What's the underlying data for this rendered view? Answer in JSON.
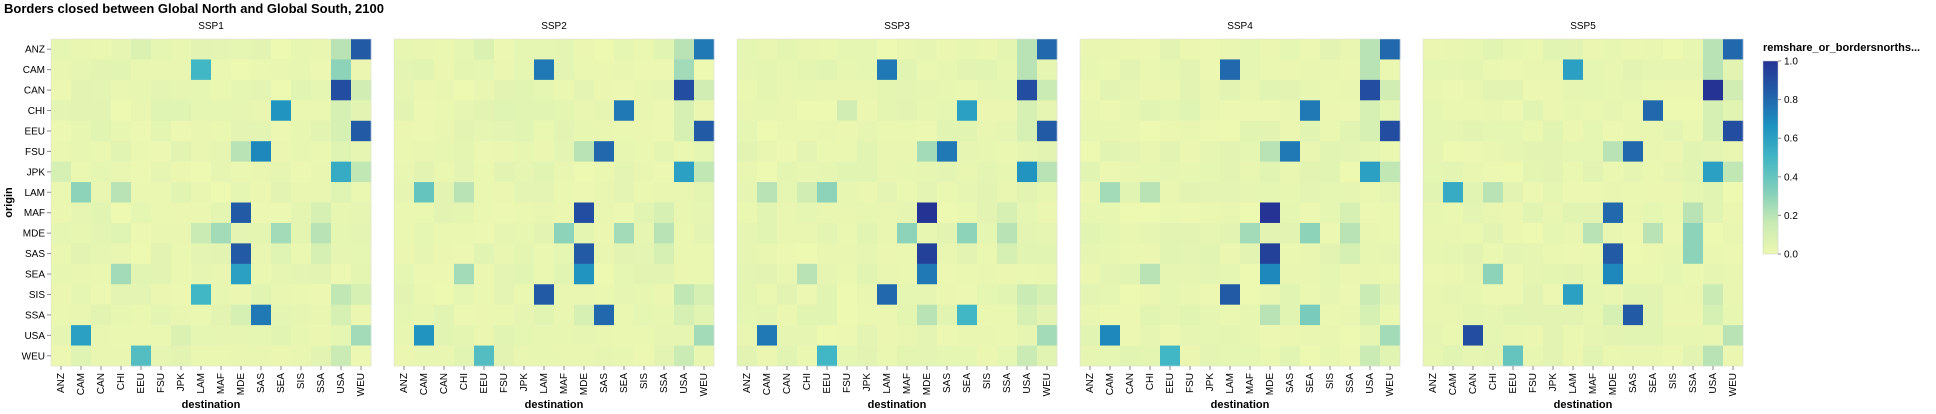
{
  "chart_data": {
    "type": "heatmap",
    "title": "Borders closed between Global North and Global South, 2100",
    "xlabel": "destination",
    "ylabel": "origin",
    "color_scale": {
      "field_label": "remshare_or_bordersnorths...",
      "domain": [
        0.0,
        1.0
      ],
      "ticks": [
        "1.0",
        "0.8",
        "0.6",
        "0.4",
        "0.2",
        "0.0"
      ],
      "scheme": "yellowgreenblue",
      "stops": [
        "#edf8b1",
        "#c7e9b4",
        "#7fcdbb",
        "#41b6c4",
        "#1d91c0",
        "#225ea8",
        "#253494"
      ]
    },
    "regions": [
      "ANZ",
      "CAM",
      "CAN",
      "CHI",
      "EEU",
      "FSU",
      "JPK",
      "LAM",
      "MAF",
      "MDE",
      "SAS",
      "SEA",
      "SIS",
      "SSA",
      "USA",
      "WEU"
    ],
    "facets": [
      {
        "name": "SSP1",
        "cells": [
          [
            "ANZ",
            "WEU",
            0.85
          ],
          [
            "ANZ",
            "USA",
            0.2
          ],
          [
            "ANZ",
            "EEU",
            0.08
          ],
          [
            "CAM",
            "LAM",
            0.5
          ],
          [
            "CAM",
            "USA",
            0.3
          ],
          [
            "CAM",
            "CHI",
            0.05
          ],
          [
            "CAN",
            "USA",
            0.9
          ],
          [
            "CAN",
            "WEU",
            0.12
          ],
          [
            "CHI",
            "SEA",
            0.65
          ],
          [
            "CHI",
            "USA",
            0.1
          ],
          [
            "CHI",
            "FSU",
            0.06
          ],
          [
            "CHI",
            "JPK",
            0.06
          ],
          [
            "EEU",
            "WEU",
            0.85
          ],
          [
            "EEU",
            "USA",
            0.1
          ],
          [
            "FSU",
            "SAS",
            0.7
          ],
          [
            "FSU",
            "MDE",
            0.2
          ],
          [
            "FSU",
            "USA",
            0.06
          ],
          [
            "JPK",
            "USA",
            0.55
          ],
          [
            "JPK",
            "WEU",
            0.18
          ],
          [
            "JPK",
            "ANZ",
            0.1
          ],
          [
            "LAM",
            "CAM",
            0.3
          ],
          [
            "LAM",
            "CHI",
            0.2
          ],
          [
            "LAM",
            "USA",
            0.06
          ],
          [
            "MAF",
            "MDE",
            0.85
          ],
          [
            "MAF",
            "SSA",
            0.1
          ],
          [
            "MDE",
            "LAM",
            0.15
          ],
          [
            "MDE",
            "MAF",
            0.25
          ],
          [
            "MDE",
            "SEA",
            0.25
          ],
          [
            "MDE",
            "SSA",
            0.2
          ],
          [
            "MDE",
            "CHI",
            0.06
          ],
          [
            "SAS",
            "MDE",
            0.85
          ],
          [
            "SAS",
            "SSA",
            0.1
          ],
          [
            "SAS",
            "SEA",
            0.06
          ],
          [
            "SEA",
            "MDE",
            0.6
          ],
          [
            "SEA",
            "CHI",
            0.25
          ],
          [
            "SIS",
            "LAM",
            0.5
          ],
          [
            "SIS",
            "USA",
            0.18
          ],
          [
            "SIS",
            "WEU",
            0.1
          ],
          [
            "SSA",
            "SAS",
            0.75
          ],
          [
            "SSA",
            "MDE",
            0.1
          ],
          [
            "SSA",
            "USA",
            0.1
          ],
          [
            "USA",
            "CAM",
            0.6
          ],
          [
            "USA",
            "WEU",
            0.25
          ],
          [
            "USA",
            "JPK",
            0.08
          ],
          [
            "WEU",
            "EEU",
            0.45
          ],
          [
            "WEU",
            "USA",
            0.15
          ],
          [
            "WEU",
            "CAM",
            0.06
          ]
        ]
      },
      {
        "name": "SSP2",
        "cells": [
          [
            "ANZ",
            "WEU",
            0.75
          ],
          [
            "ANZ",
            "USA",
            0.2
          ],
          [
            "ANZ",
            "EEU",
            0.08
          ],
          [
            "CAM",
            "LAM",
            0.75
          ],
          [
            "CAM",
            "USA",
            0.25
          ],
          [
            "CAN",
            "USA",
            0.9
          ],
          [
            "CAN",
            "WEU",
            0.12
          ],
          [
            "CHI",
            "SEA",
            0.75
          ],
          [
            "CHI",
            "USA",
            0.1
          ],
          [
            "CHI",
            "FSU",
            0.06
          ],
          [
            "EEU",
            "WEU",
            0.85
          ],
          [
            "EEU",
            "USA",
            0.1
          ],
          [
            "FSU",
            "SAS",
            0.8
          ],
          [
            "FSU",
            "MDE",
            0.2
          ],
          [
            "JPK",
            "USA",
            0.6
          ],
          [
            "JPK",
            "WEU",
            0.18
          ],
          [
            "LAM",
            "CAM",
            0.4
          ],
          [
            "LAM",
            "CHI",
            0.2
          ],
          [
            "MAF",
            "MDE",
            0.9
          ],
          [
            "MAF",
            "SSA",
            0.1
          ],
          [
            "MDE",
            "MAF",
            0.3
          ],
          [
            "MDE",
            "SEA",
            0.25
          ],
          [
            "MDE",
            "SSA",
            0.2
          ],
          [
            "SAS",
            "MDE",
            0.85
          ],
          [
            "SAS",
            "SSA",
            0.1
          ],
          [
            "SEA",
            "MDE",
            0.65
          ],
          [
            "SEA",
            "CHI",
            0.25
          ],
          [
            "SIS",
            "LAM",
            0.85
          ],
          [
            "SIS",
            "USA",
            0.18
          ],
          [
            "SIS",
            "WEU",
            0.1
          ],
          [
            "SSA",
            "SAS",
            0.8
          ],
          [
            "SSA",
            "MDE",
            0.1
          ],
          [
            "SSA",
            "USA",
            0.1
          ],
          [
            "USA",
            "CAM",
            0.65
          ],
          [
            "USA",
            "WEU",
            0.25
          ],
          [
            "WEU",
            "EEU",
            0.45
          ],
          [
            "WEU",
            "USA",
            0.15
          ]
        ]
      },
      {
        "name": "SSP3",
        "cells": [
          [
            "ANZ",
            "WEU",
            0.8
          ],
          [
            "ANZ",
            "USA",
            0.2
          ],
          [
            "CAM",
            "LAM",
            0.75
          ],
          [
            "CAM",
            "USA",
            0.2
          ],
          [
            "CAN",
            "USA",
            0.9
          ],
          [
            "CAN",
            "WEU",
            0.15
          ],
          [
            "CHI",
            "SEA",
            0.6
          ],
          [
            "CHI",
            "FSU",
            0.12
          ],
          [
            "CHI",
            "USA",
            0.1
          ],
          [
            "EEU",
            "WEU",
            0.85
          ],
          [
            "EEU",
            "USA",
            0.1
          ],
          [
            "FSU",
            "SAS",
            0.75
          ],
          [
            "FSU",
            "MDE",
            0.25
          ],
          [
            "JPK",
            "USA",
            0.65
          ],
          [
            "JPK",
            "WEU",
            0.2
          ],
          [
            "LAM",
            "EEU",
            0.3
          ],
          [
            "LAM",
            "CAM",
            0.2
          ],
          [
            "LAM",
            "CHI",
            0.12
          ],
          [
            "MAF",
            "MDE",
            1.0
          ],
          [
            "MAF",
            "SSA",
            0.1
          ],
          [
            "MDE",
            "MAF",
            0.3
          ],
          [
            "MDE",
            "SEA",
            0.3
          ],
          [
            "MDE",
            "SSA",
            0.2
          ],
          [
            "SAS",
            "MDE",
            0.95
          ],
          [
            "SAS",
            "SSA",
            0.1
          ],
          [
            "SEA",
            "MDE",
            0.75
          ],
          [
            "SEA",
            "CHI",
            0.2
          ],
          [
            "SIS",
            "LAM",
            0.8
          ],
          [
            "SIS",
            "USA",
            0.15
          ],
          [
            "SIS",
            "WEU",
            0.1
          ],
          [
            "SSA",
            "SEA",
            0.5
          ],
          [
            "SSA",
            "MDE",
            0.2
          ],
          [
            "SSA",
            "USA",
            0.1
          ],
          [
            "USA",
            "CAM",
            0.75
          ],
          [
            "USA",
            "WEU",
            0.25
          ],
          [
            "WEU",
            "EEU",
            0.5
          ],
          [
            "WEU",
            "USA",
            0.15
          ]
        ]
      },
      {
        "name": "SSP4",
        "cells": [
          [
            "ANZ",
            "WEU",
            0.8
          ],
          [
            "ANZ",
            "USA",
            0.2
          ],
          [
            "CAM",
            "LAM",
            0.8
          ],
          [
            "CAM",
            "USA",
            0.2
          ],
          [
            "CAN",
            "USA",
            0.9
          ],
          [
            "CAN",
            "WEU",
            0.12
          ],
          [
            "CHI",
            "SEA",
            0.75
          ],
          [
            "CHI",
            "USA",
            0.1
          ],
          [
            "CHI",
            "FSU",
            0.06
          ],
          [
            "EEU",
            "WEU",
            0.9
          ],
          [
            "EEU",
            "USA",
            0.1
          ],
          [
            "FSU",
            "SAS",
            0.75
          ],
          [
            "FSU",
            "MDE",
            0.2
          ],
          [
            "JPK",
            "USA",
            0.6
          ],
          [
            "JPK",
            "WEU",
            0.18
          ],
          [
            "LAM",
            "CAM",
            0.25
          ],
          [
            "LAM",
            "CHI",
            0.2
          ],
          [
            "MAF",
            "MDE",
            1.0
          ],
          [
            "MAF",
            "SSA",
            0.1
          ],
          [
            "MDE",
            "MAF",
            0.25
          ],
          [
            "MDE",
            "SEA",
            0.3
          ],
          [
            "MDE",
            "SSA",
            0.2
          ],
          [
            "SAS",
            "MDE",
            0.95
          ],
          [
            "SAS",
            "SSA",
            0.1
          ],
          [
            "SEA",
            "MDE",
            0.7
          ],
          [
            "SEA",
            "CHI",
            0.2
          ],
          [
            "SIS",
            "LAM",
            0.85
          ],
          [
            "SIS",
            "USA",
            0.15
          ],
          [
            "SSA",
            "SEA",
            0.35
          ],
          [
            "SSA",
            "MDE",
            0.2
          ],
          [
            "SSA",
            "USA",
            0.1
          ],
          [
            "USA",
            "CAM",
            0.7
          ],
          [
            "USA",
            "WEU",
            0.25
          ],
          [
            "WEU",
            "EEU",
            0.5
          ],
          [
            "WEU",
            "USA",
            0.15
          ]
        ]
      },
      {
        "name": "SSP5",
        "cells": [
          [
            "ANZ",
            "WEU",
            0.8
          ],
          [
            "ANZ",
            "USA",
            0.2
          ],
          [
            "CAM",
            "LAM",
            0.6
          ],
          [
            "CAM",
            "USA",
            0.2
          ],
          [
            "CAN",
            "USA",
            1.0
          ],
          [
            "CAN",
            "WEU",
            0.12
          ],
          [
            "CHI",
            "SEA",
            0.8
          ],
          [
            "CHI",
            "USA",
            0.1
          ],
          [
            "EEU",
            "WEU",
            0.9
          ],
          [
            "EEU",
            "USA",
            0.1
          ],
          [
            "FSU",
            "SAS",
            0.8
          ],
          [
            "FSU",
            "MDE",
            0.2
          ],
          [
            "JPK",
            "USA",
            0.6
          ],
          [
            "JPK",
            "WEU",
            0.18
          ],
          [
            "LAM",
            "CAM",
            0.55
          ],
          [
            "LAM",
            "CHI",
            0.2
          ],
          [
            "MAF",
            "MDE",
            0.8
          ],
          [
            "MAF",
            "SSA",
            0.2
          ],
          [
            "MDE",
            "MAF",
            0.2
          ],
          [
            "MDE",
            "SEA",
            0.2
          ],
          [
            "MDE",
            "SSA",
            0.3
          ],
          [
            "SAS",
            "MDE",
            0.85
          ],
          [
            "SAS",
            "SSA",
            0.3
          ],
          [
            "SEA",
            "MDE",
            0.7
          ],
          [
            "SEA",
            "CHI",
            0.3
          ],
          [
            "SIS",
            "LAM",
            0.6
          ],
          [
            "SIS",
            "USA",
            0.15
          ],
          [
            "SSA",
            "SAS",
            0.85
          ],
          [
            "SSA",
            "MDE",
            0.1
          ],
          [
            "SSA",
            "USA",
            0.1
          ],
          [
            "USA",
            "CAN",
            0.9
          ],
          [
            "USA",
            "WEU",
            0.2
          ],
          [
            "WEU",
            "EEU",
            0.4
          ],
          [
            "WEU",
            "USA",
            0.2
          ]
        ]
      }
    ]
  }
}
